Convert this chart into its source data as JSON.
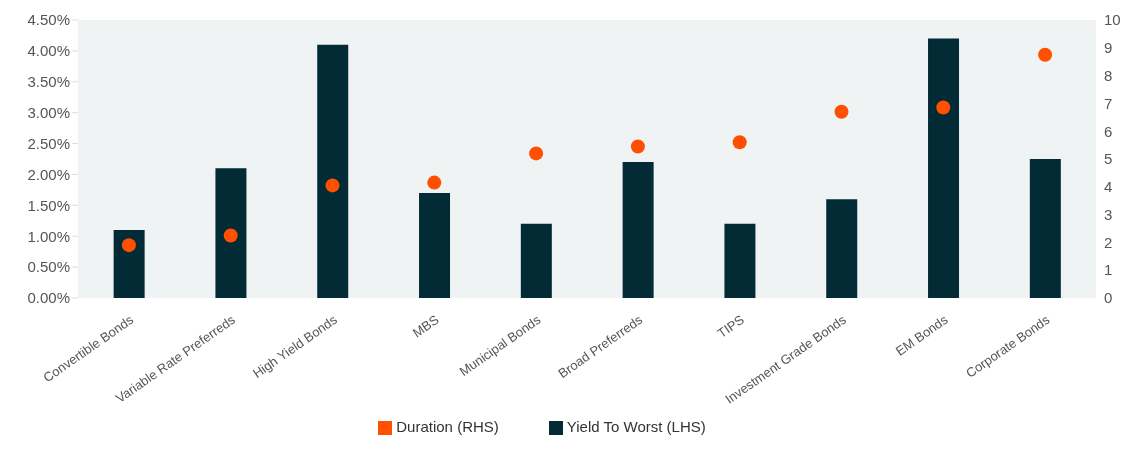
{
  "chart_data": {
    "type": "bar",
    "categories": [
      "Convertible Bonds",
      "Variable Rate Preferreds",
      "High Yield Bonds",
      "MBS",
      "Municipal Bonds",
      "Broad Preferreds",
      "TIPS",
      "Investment Grade Bonds",
      "EM Bonds",
      "Corporate Bonds"
    ],
    "series": [
      {
        "name": "Yield To Worst (LHS)",
        "color": "#022b35",
        "values": [
          1.1,
          2.1,
          4.1,
          1.7,
          1.2,
          2.2,
          1.2,
          1.6,
          4.2,
          2.25
        ]
      },
      {
        "name": "Duration (RHS)",
        "type": "scatter",
        "axis": "y2",
        "color": "#fe5000",
        "values": [
          1.9,
          2.25,
          4.05,
          4.15,
          5.2,
          5.45,
          5.6,
          6.7,
          6.85,
          8.75
        ]
      }
    ],
    "ylim": [
      0,
      4.5
    ],
    "yticks": [
      {
        "value": 0,
        "label": "0.00%"
      },
      {
        "value": 0.5,
        "label": "0.50%"
      },
      {
        "value": 1,
        "label": "1.00%"
      },
      {
        "value": 1.5,
        "label": "1.50%"
      },
      {
        "value": 2,
        "label": "2.00%"
      },
      {
        "value": 2.5,
        "label": "2.50%"
      },
      {
        "value": 3,
        "label": "3.00%"
      },
      {
        "value": 3.5,
        "label": "3.50%"
      },
      {
        "value": 4,
        "label": "4.00%"
      },
      {
        "value": 4.5,
        "label": "4.50%"
      }
    ],
    "y2lim": [
      0,
      10
    ],
    "y2ticks": [
      0,
      1,
      2,
      3,
      4,
      5,
      6,
      7,
      8,
      9,
      10
    ],
    "legend": "bottom",
    "marker": "circle"
  }
}
